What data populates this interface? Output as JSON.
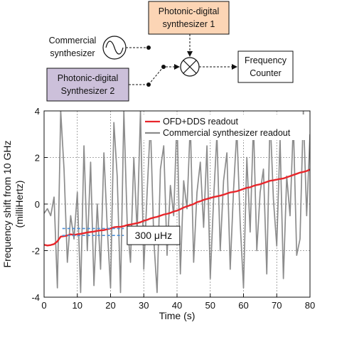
{
  "diagram": {
    "commercial_label": [
      "Commercial",
      "synthesizer"
    ],
    "synth1_label": [
      "Photonic-digital",
      "synthesizer 1"
    ],
    "synth2_label": [
      "Photonic-digital",
      "Synthesizer 2"
    ],
    "counter_label": [
      "Frequency",
      "Counter"
    ],
    "colors": {
      "synth1_fill": "#fcd5b5",
      "synth2_fill": "#ccc0da"
    }
  },
  "chart_data": {
    "type": "line",
    "xlabel": "Time (s)",
    "ylabel": [
      "Frequency shift from 10 GHz",
      "(milliHertz)"
    ],
    "xlim": [
      0,
      80
    ],
    "ylim": [
      -4,
      4
    ],
    "xticks": [
      "0",
      "10",
      "20",
      "30",
      "40",
      "50",
      "60",
      "70",
      "80"
    ],
    "yticks": [
      "-4",
      "-2",
      "0",
      "2",
      "4"
    ],
    "grid": true,
    "legend_position": "top-right",
    "annotation": "300 μHz",
    "series": [
      {
        "name": "OFD+DDS readout",
        "color": "#e8262b",
        "x": [
          0,
          1,
          2,
          3,
          4,
          5,
          6,
          7,
          8,
          9,
          10,
          11,
          12,
          13,
          14,
          15,
          16,
          17,
          18,
          19,
          20,
          21,
          22,
          23,
          24,
          25,
          26,
          27,
          28,
          29,
          30,
          31,
          32,
          33,
          34,
          35,
          36,
          37,
          38,
          39,
          40,
          41,
          42,
          43,
          44,
          45,
          46,
          47,
          48,
          49,
          50,
          51,
          52,
          53,
          54,
          55,
          56,
          57,
          58,
          59,
          60,
          61,
          62,
          63,
          64,
          65,
          66,
          67,
          68,
          69,
          70,
          71,
          72,
          73,
          74,
          75,
          76,
          77,
          78,
          79,
          80
        ],
        "y": [
          -1.75,
          -1.78,
          -1.76,
          -1.72,
          -1.6,
          -1.4,
          -1.38,
          -1.35,
          -1.3,
          -1.33,
          -1.3,
          -1.28,
          -1.25,
          -1.22,
          -1.2,
          -1.18,
          -1.15,
          -1.13,
          -1.12,
          -1.08,
          -1.05,
          -1.0,
          -0.98,
          -0.98,
          -0.95,
          -0.9,
          -0.88,
          -0.85,
          -0.82,
          -0.78,
          -0.72,
          -0.68,
          -0.62,
          -0.58,
          -0.55,
          -0.5,
          -0.45,
          -0.42,
          -0.38,
          -0.32,
          -0.28,
          -0.22,
          -0.15,
          -0.1,
          -0.05,
          0.0,
          0.08,
          0.12,
          0.18,
          0.22,
          0.26,
          0.3,
          0.33,
          0.36,
          0.4,
          0.45,
          0.5,
          0.52,
          0.55,
          0.6,
          0.65,
          0.7,
          0.72,
          0.78,
          0.82,
          0.85,
          0.9,
          0.95,
          1.0,
          1.02,
          1.05,
          1.08,
          1.1,
          1.15,
          1.2,
          1.25,
          1.3,
          1.35,
          1.38,
          1.42,
          1.48
        ]
      },
      {
        "name": "Commercial synthesizer readout",
        "color": "#8c8c8c",
        "x": [
          0,
          1,
          2,
          3,
          4,
          5,
          6,
          7,
          8,
          9,
          10,
          11,
          12,
          13,
          14,
          15,
          16,
          17,
          18,
          19,
          20,
          21,
          22,
          23,
          24,
          25,
          26,
          27,
          28,
          29,
          30,
          31,
          32,
          33,
          34,
          35,
          36,
          37,
          38,
          39,
          40,
          41,
          42,
          43,
          44,
          45,
          46,
          47,
          48,
          49,
          50,
          51,
          52,
          53,
          54,
          55,
          56,
          57,
          58,
          59,
          60,
          61,
          62,
          63,
          64,
          65,
          66,
          67,
          68,
          69,
          70,
          71,
          72,
          73,
          74,
          75,
          76,
          77,
          78,
          79,
          80
        ],
        "y": [
          -0.4,
          -0.2,
          -0.5,
          0.3,
          -3.6,
          4.0,
          1.5,
          -2.5,
          -0.5,
          -1.5,
          0.5,
          -3.8,
          2.5,
          -2.0,
          1.8,
          -3.5,
          0.0,
          -2.8,
          2.2,
          -1.0,
          -3.6,
          3.5,
          1.2,
          -3.8,
          4.0,
          -0.8,
          -2.5,
          2.0,
          -1.2,
          4.0,
          -2.8,
          0.5,
          3.5,
          -1.5,
          -3.8,
          1.5,
          2.5,
          -2.2,
          0.8,
          -0.5,
          3.8,
          -3.0,
          1.0,
          -0.2,
          3.5,
          -2.5,
          0.5,
          1.8,
          -1.0,
          2.5,
          -3.2,
          0.2,
          3.0,
          -2.0,
          1.0,
          2.2,
          -2.8,
          0.6,
          3.2,
          -0.8,
          -3.6,
          2.0,
          -1.2,
          3.5,
          -2.0,
          0.5,
          1.5,
          -3.0,
          3.8,
          0.2,
          -1.8,
          2.8,
          -3.2,
          1.2,
          -0.5,
          3.5,
          -2.2,
          -1.5,
          4.0,
          -0.5,
          3.0
        ]
      }
    ]
  }
}
